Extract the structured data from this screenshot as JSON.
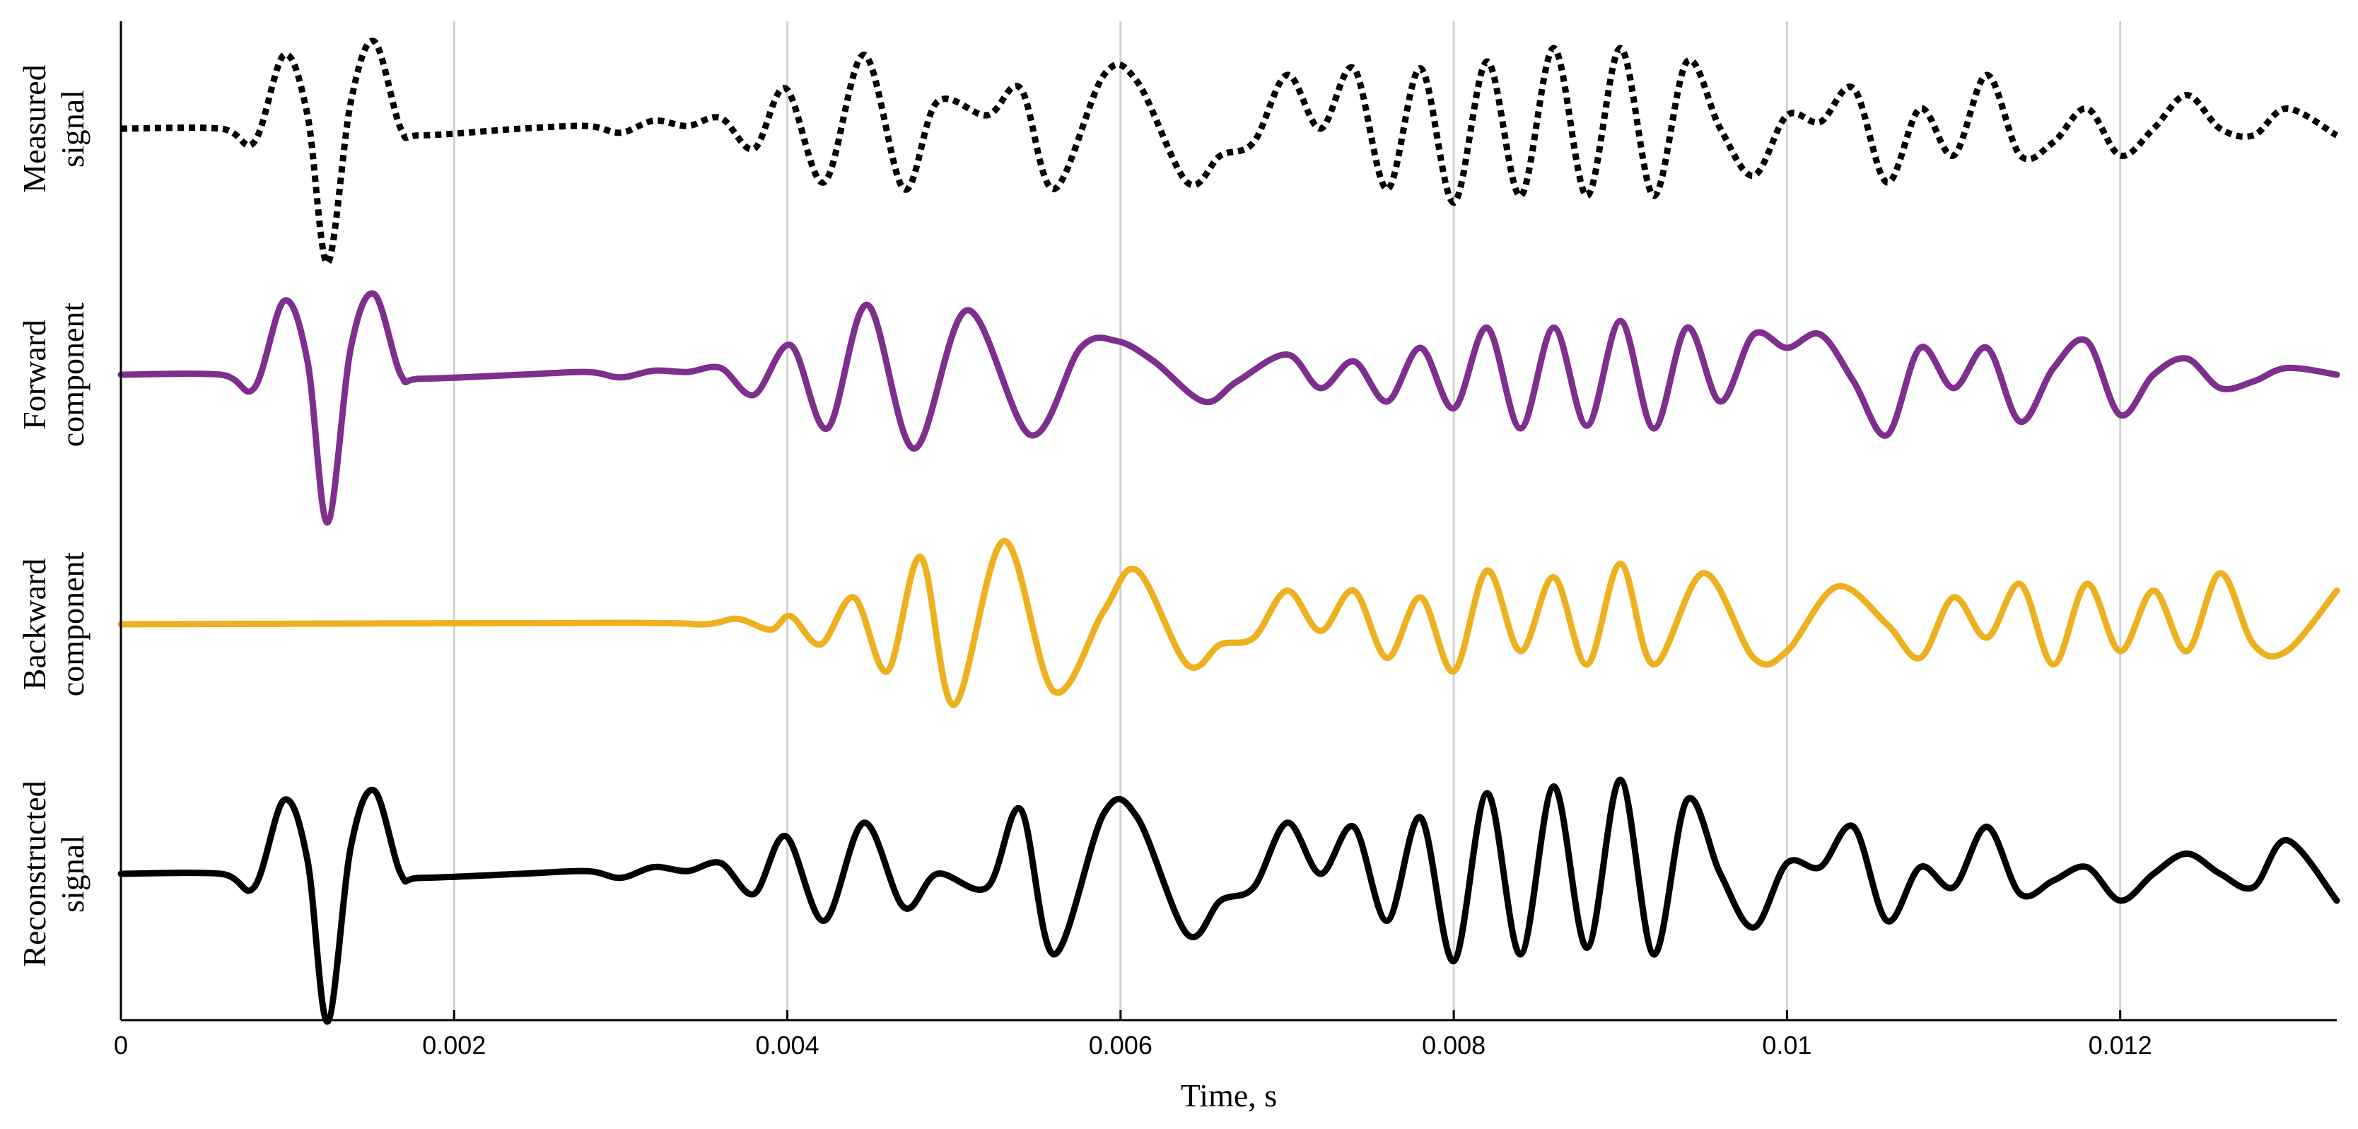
{
  "chart_data": {
    "type": "line",
    "xlabel": "Time, s",
    "xlim": [
      0,
      0.0133
    ],
    "xticks": [
      0,
      0.002,
      0.004,
      0.006,
      0.008,
      0.01,
      0.012
    ],
    "xtick_labels": [
      "0",
      "0.002",
      "0.004",
      "0.006",
      "0.008",
      "0.01",
      "0.012"
    ],
    "grid": "vertical",
    "legend": "none",
    "series": [
      {
        "row_label": [
          "Measured",
          "signal"
        ],
        "color": "#000000",
        "style": "dotted",
        "x": [
          0,
          0.0006,
          0.0008,
          0.00098,
          0.00112,
          0.00124,
          0.00138,
          0.00152,
          0.00168,
          0.0018,
          0.0024,
          0.0028,
          0.003,
          0.0032,
          0.0034,
          0.0036,
          0.0038,
          0.00399,
          0.00422,
          0.00446,
          0.0047,
          0.0049,
          0.0052,
          0.0054,
          0.0056,
          0.0059,
          0.0061,
          0.0064,
          0.0066,
          0.0068,
          0.007,
          0.0072,
          0.0074,
          0.0076,
          0.0078,
          0.008,
          0.0082,
          0.0084,
          0.0086,
          0.0088,
          0.009,
          0.0092,
          0.0094,
          0.0096,
          0.0098,
          0.01,
          0.0102,
          0.0104,
          0.0106,
          0.0108,
          0.011,
          0.0112,
          0.0114,
          0.0116,
          0.0118,
          0.012,
          0.0122,
          0.0124,
          0.0126,
          0.0128,
          0.013,
          0.0133
        ],
        "y": [
          0,
          0,
          -0.1,
          0.55,
          0.1,
          -1.0,
          0.2,
          0.65,
          0.0,
          -0.05,
          0,
          0.02,
          -0.03,
          0.06,
          0.02,
          0.08,
          -0.15,
          0.3,
          -0.4,
          0.55,
          -0.45,
          0.2,
          0.1,
          0.3,
          -0.45,
          0.4,
          0.35,
          -0.4,
          -0.2,
          -0.1,
          0.4,
          0.0,
          0.45,
          -0.45,
          0.45,
          -0.55,
          0.5,
          -0.5,
          0.6,
          -0.5,
          0.6,
          -0.5,
          0.5,
          0.0,
          -0.35,
          0.1,
          0.05,
          0.3,
          -0.4,
          0.15,
          -0.2,
          0.4,
          -0.2,
          -0.1,
          0.15,
          -0.2,
          0.0,
          0.25,
          0.0,
          -0.05,
          0.15,
          -0.05
        ]
      },
      {
        "row_label": [
          "Forward",
          "component"
        ],
        "color": "#7e2f8e",
        "style": "solid",
        "x": [
          0,
          0.0006,
          0.0008,
          0.00098,
          0.00112,
          0.00124,
          0.00138,
          0.00152,
          0.00168,
          0.0018,
          0.0024,
          0.0028,
          0.003,
          0.0032,
          0.0034,
          0.0036,
          0.0038,
          0.00402,
          0.00424,
          0.00448,
          0.00476,
          0.00508,
          0.00546,
          0.00576,
          0.00598,
          0.0062,
          0.0065,
          0.0067,
          0.007,
          0.0072,
          0.0074,
          0.0076,
          0.0078,
          0.008,
          0.0082,
          0.0084,
          0.0086,
          0.0088,
          0.009,
          0.0092,
          0.0094,
          0.0096,
          0.0098,
          0.01,
          0.0102,
          0.0104,
          0.0106,
          0.0108,
          0.011,
          0.0112,
          0.0114,
          0.0116,
          0.0118,
          0.012,
          0.0122,
          0.0124,
          0.0126,
          0.0128,
          0.013,
          0.0133
        ],
        "y": [
          0,
          0,
          -0.1,
          0.55,
          0.1,
          -1.1,
          0.2,
          0.6,
          0.0,
          -0.03,
          0,
          0.02,
          -0.02,
          0.03,
          0.02,
          0.05,
          -0.15,
          0.22,
          -0.4,
          0.52,
          -0.55,
          0.48,
          -0.45,
          0.2,
          0.25,
          0.1,
          -0.2,
          -0.05,
          0.15,
          -0.1,
          0.1,
          -0.2,
          0.2,
          -0.25,
          0.35,
          -0.4,
          0.35,
          -0.38,
          0.4,
          -0.4,
          0.35,
          -0.2,
          0.3,
          0.2,
          0.3,
          -0.05,
          -0.45,
          0.2,
          -0.1,
          0.2,
          -0.35,
          0.05,
          0.25,
          -0.3,
          0.0,
          0.12,
          -0.1,
          -0.05,
          0.05,
          0.0
        ]
      },
      {
        "row_label": [
          "Backward",
          "component"
        ],
        "color": "#edb120",
        "style": "solid",
        "x": [
          0,
          0.003,
          0.0035,
          0.0037,
          0.0039,
          0.00402,
          0.0042,
          0.0044,
          0.0046,
          0.0048,
          0.005,
          0.0053,
          0.0056,
          0.0059,
          0.0061,
          0.0064,
          0.0066,
          0.0068,
          0.007,
          0.0072,
          0.0074,
          0.0076,
          0.0078,
          0.008,
          0.0082,
          0.0084,
          0.0086,
          0.0088,
          0.009,
          0.0092,
          0.0095,
          0.0098,
          0.01,
          0.0103,
          0.0106,
          0.0108,
          0.011,
          0.0112,
          0.0114,
          0.0116,
          0.0118,
          0.012,
          0.0122,
          0.0124,
          0.0126,
          0.0128,
          0.013,
          0.0133
        ],
        "y": [
          0,
          0.01,
          0.0,
          0.04,
          -0.04,
          0.06,
          -0.15,
          0.2,
          -0.35,
          0.5,
          -0.6,
          0.62,
          -0.5,
          0.1,
          0.4,
          -0.3,
          -0.15,
          -0.1,
          0.25,
          -0.05,
          0.25,
          -0.25,
          0.2,
          -0.35,
          0.4,
          -0.2,
          0.35,
          -0.3,
          0.45,
          -0.3,
          0.38,
          -0.25,
          -0.2,
          0.28,
          0.0,
          -0.25,
          0.2,
          -0.1,
          0.3,
          -0.3,
          0.3,
          -0.2,
          0.25,
          -0.2,
          0.38,
          -0.15,
          -0.2,
          0.25
        ]
      },
      {
        "row_label": [
          "Reconstructed",
          "signal"
        ],
        "color": "#000000",
        "style": "solid",
        "x": [
          0,
          0.0006,
          0.0008,
          0.00098,
          0.00112,
          0.00124,
          0.00138,
          0.00152,
          0.00168,
          0.0018,
          0.0024,
          0.0028,
          0.003,
          0.0032,
          0.0034,
          0.0036,
          0.0038,
          0.00399,
          0.00422,
          0.00446,
          0.0047,
          0.0049,
          0.0052,
          0.0054,
          0.0056,
          0.0059,
          0.0061,
          0.0064,
          0.0066,
          0.0068,
          0.007,
          0.0072,
          0.0074,
          0.0076,
          0.0078,
          0.008,
          0.0082,
          0.0084,
          0.0086,
          0.0088,
          0.009,
          0.0092,
          0.0094,
          0.0096,
          0.0098,
          0.01,
          0.0102,
          0.0104,
          0.0106,
          0.0108,
          0.011,
          0.0112,
          0.0114,
          0.0116,
          0.0118,
          0.012,
          0.0122,
          0.0124,
          0.0126,
          0.0128,
          0.013,
          0.0133
        ],
        "y": [
          0,
          0,
          -0.1,
          0.55,
          0.1,
          -1.1,
          0.2,
          0.62,
          0.0,
          -0.03,
          0,
          0.02,
          -0.03,
          0.05,
          0.02,
          0.08,
          -0.15,
          0.28,
          -0.35,
          0.38,
          -0.25,
          0.0,
          -0.1,
          0.48,
          -0.6,
          0.45,
          0.42,
          -0.45,
          -0.2,
          -0.1,
          0.38,
          0.0,
          0.35,
          -0.35,
          0.42,
          -0.65,
          0.6,
          -0.6,
          0.65,
          -0.55,
          0.7,
          -0.6,
          0.55,
          0.0,
          -0.4,
          0.08,
          0.05,
          0.35,
          -0.35,
          0.05,
          -0.1,
          0.35,
          -0.15,
          -0.05,
          0.05,
          -0.2,
          0.0,
          0.15,
          0.0,
          -0.1,
          0.25,
          -0.2
        ]
      }
    ]
  }
}
